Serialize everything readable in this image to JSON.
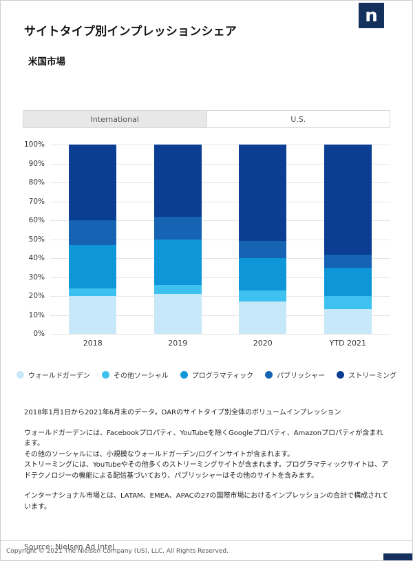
{
  "page": {
    "title": "サイトタイプ別インプレッションシェア",
    "subtitle": "米国市場",
    "logo_letter": "n",
    "brand_color": "#14305C",
    "source": "Source: Nielsen Ad Intel",
    "copyright": "Copyright © 2021 The Nielsen Company (US), LLC. All Rights Reserved."
  },
  "tabs": [
    {
      "label": "International",
      "active": false
    },
    {
      "label": "U.S.",
      "active": true
    }
  ],
  "notes": {
    "paragraphs": [
      "2018年1月1日から2021年6月末のデータ。DARのサイトタイプ別全体のボリュームインプレッション",
      "ウォールドガーデンには、Facebookプロパティ、YouTubeを除くGoogleプロパティ、Amazonプロパティが含まれます。\nその他のソーシャルには、小規模なウォールドガーデン/ログインサイトが含まれます。\nストリーミングには、YouTubeやその他多くのストリーミングサイトが含まれます。プログラマティックサイトは、アドテクノロジーの機能による配信基づいており、パブリッシャーはその他のサイトを含みます。",
      "インターナショナル市場とは、LATAM、EMEA、APACの27の国際市場におけるインプレッションの合計で構成されています。"
    ]
  },
  "chart_data": {
    "type": "bar",
    "stacked": true,
    "stacked_to_100": true,
    "title": "サイトタイプ別インプレッションシェア",
    "subtitle": "米国市場",
    "categories": [
      "2018",
      "2019",
      "2020",
      "YTD 2021"
    ],
    "series": [
      {
        "name": "ウォールドガーデン",
        "color": "#C7E8F8",
        "values": [
          20,
          21,
          17,
          13
        ]
      },
      {
        "name": "その他ソーシャル",
        "color": "#3EC1EF",
        "values": [
          4,
          5,
          6,
          7
        ]
      },
      {
        "name": "プログラマティック",
        "color": "#0F96D9",
        "values": [
          23,
          24,
          17,
          15
        ]
      },
      {
        "name": "パブリッシャー",
        "color": "#1563B2",
        "values": [
          13,
          12,
          9,
          7
        ]
      },
      {
        "name": "ストリーミング",
        "color": "#0B3E92",
        "values": [
          40,
          38,
          51,
          58
        ]
      }
    ],
    "xlabel": "",
    "ylabel": "",
    "ylim": [
      0,
      100
    ],
    "y_ticks": [
      "100%",
      "90%",
      "80%",
      "70%",
      "60%",
      "50%",
      "40%",
      "30%",
      "20%",
      "10%",
      "0%"
    ],
    "grid": true,
    "legend_position": "bottom"
  }
}
